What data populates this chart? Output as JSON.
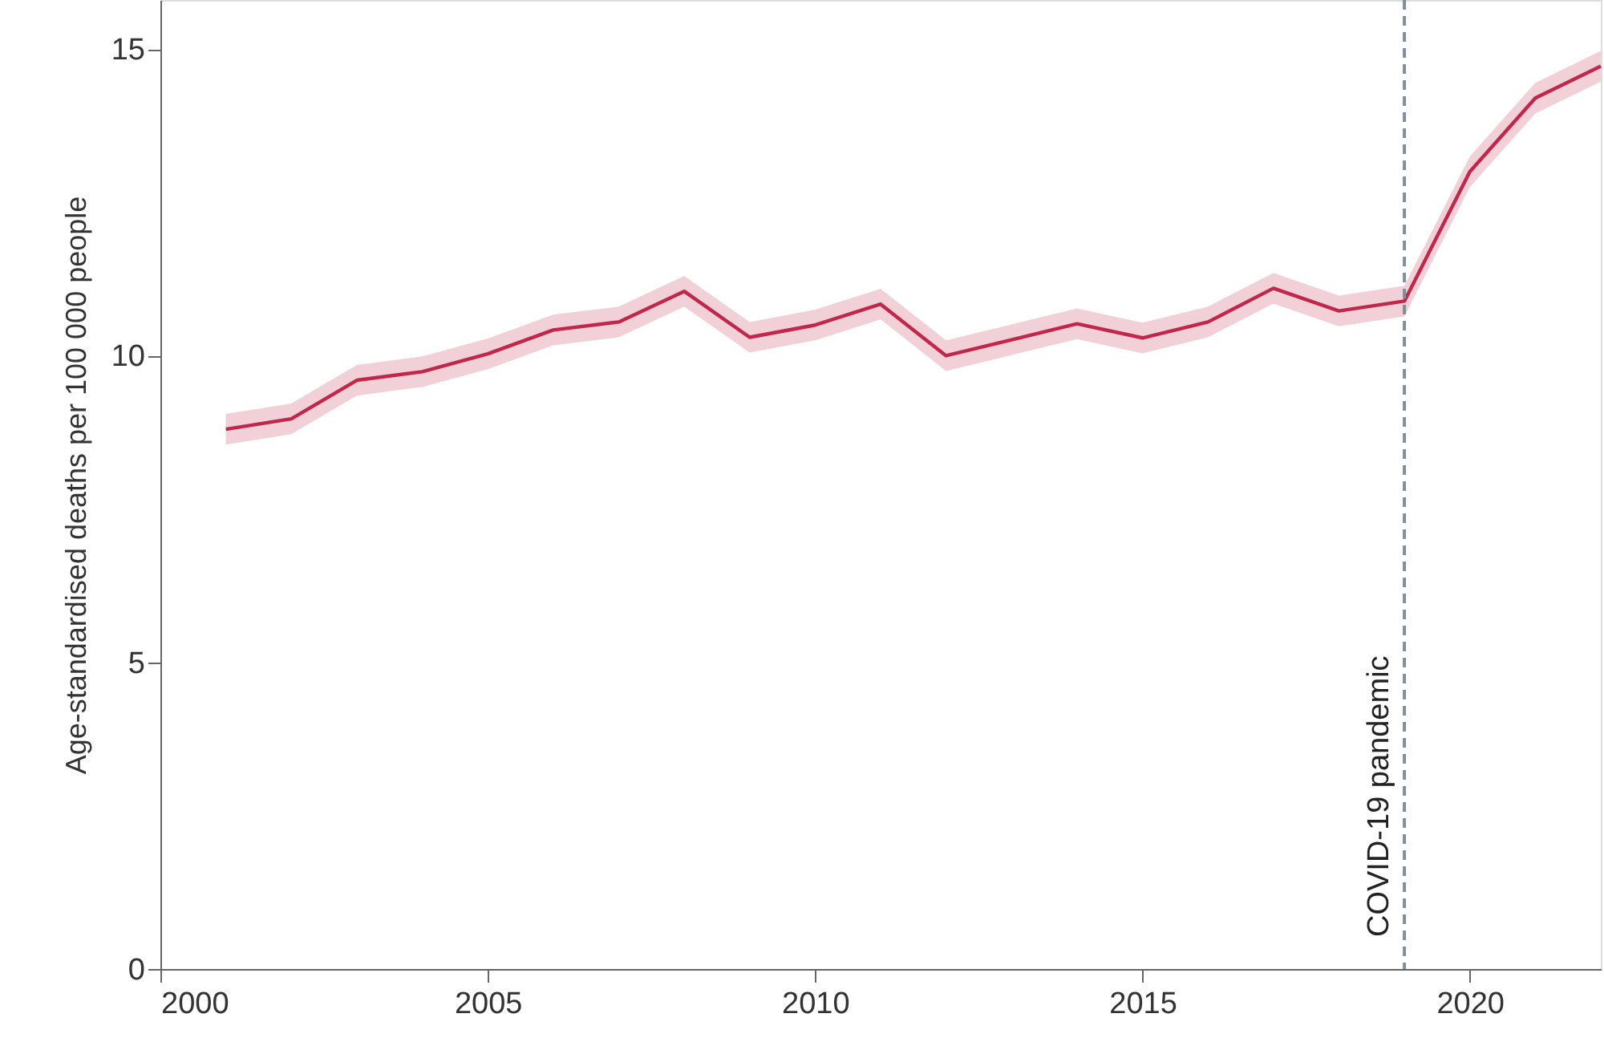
{
  "chart_data": {
    "type": "line",
    "ylabel": "Age-standardised deaths per 100 000 people",
    "x": [
      2001,
      2002,
      2003,
      2004,
      2005,
      2006,
      2007,
      2008,
      2009,
      2010,
      2011,
      2012,
      2013,
      2014,
      2015,
      2016,
      2017,
      2018,
      2019,
      2020,
      2021,
      2022
    ],
    "series": [
      {
        "color": "#c0274a",
        "values": [
          8.8,
          8.97,
          9.6,
          9.74,
          10.03,
          10.42,
          10.55,
          11.05,
          10.3,
          10.5,
          10.84,
          10.0,
          10.26,
          10.52,
          10.29,
          10.55,
          11.1,
          10.73,
          10.89,
          13.0,
          14.2,
          14.72
        ],
        "lower": [
          8.55,
          8.72,
          9.35,
          9.49,
          9.78,
          10.17,
          10.3,
          10.8,
          10.05,
          10.25,
          10.59,
          9.75,
          10.01,
          10.27,
          10.04,
          10.3,
          10.85,
          10.48,
          10.64,
          12.75,
          13.95,
          14.47
        ],
        "upper": [
          9.05,
          9.22,
          9.85,
          9.99,
          10.28,
          10.67,
          10.8,
          11.3,
          10.55,
          10.75,
          11.09,
          10.25,
          10.51,
          10.77,
          10.54,
          10.8,
          11.35,
          10.98,
          11.14,
          13.25,
          14.45,
          14.97
        ]
      }
    ],
    "xlim": [
      2000,
      2022
    ],
    "xticks": [
      2000,
      2005,
      2010,
      2015,
      2020
    ],
    "ylim": [
      0,
      15.8
    ],
    "yticks": [
      0,
      5,
      10,
      15
    ],
    "ref_lines": [
      {
        "axis": "x",
        "value": 2019,
        "label": "COVID-19 pandemic",
        "color": "#7f8f99",
        "line_style": "dashed"
      }
    ],
    "grid": false,
    "marker": "none",
    "line_style": "solid"
  }
}
